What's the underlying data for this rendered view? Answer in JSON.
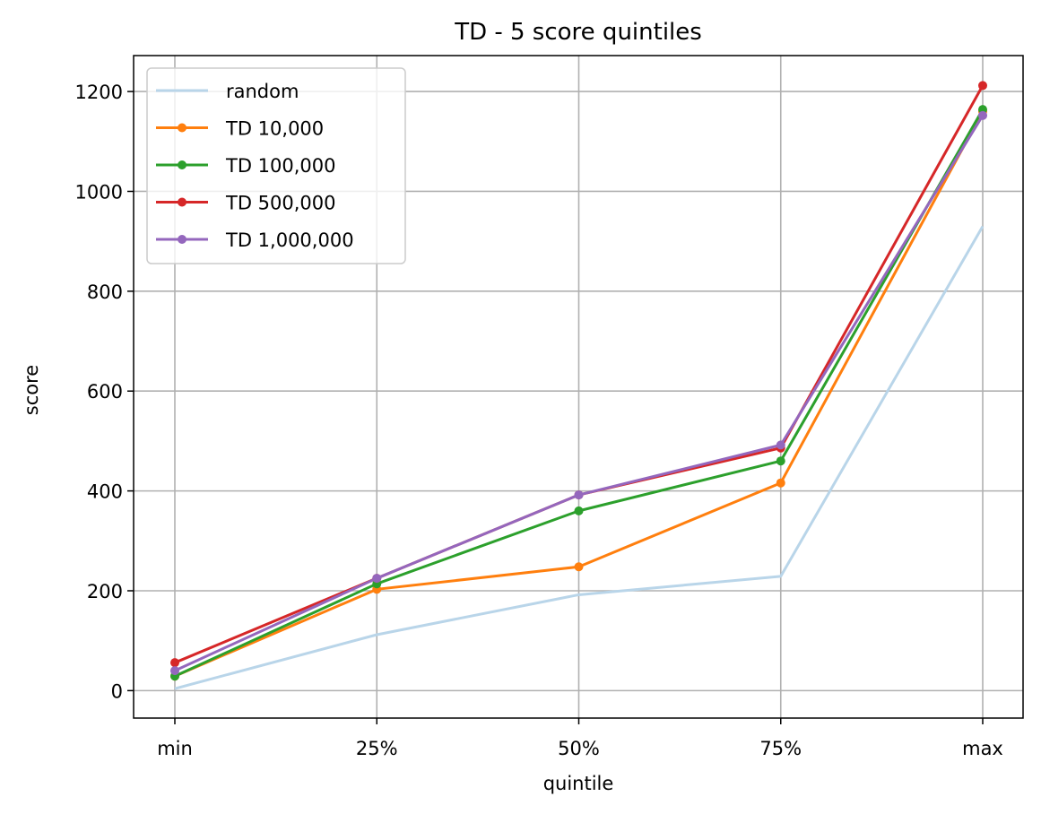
{
  "chart_data": {
    "type": "line",
    "title": "TD - 5 score quintiles",
    "xlabel": "quintile",
    "ylabel": "score",
    "categories": [
      "min",
      "25%",
      "50%",
      "75%",
      "max"
    ],
    "ylim": [
      -55,
      1272
    ],
    "yticks": [
      0,
      200,
      400,
      600,
      800,
      1000,
      1200
    ],
    "grid": true,
    "legend_position": "top-left",
    "series": [
      {
        "name": "random",
        "color": "#b9d5e9",
        "markers": false,
        "values": [
          4,
          112,
          192,
          229,
          930
        ]
      },
      {
        "name": "TD 10,000",
        "color": "#ff7f0e",
        "markers": true,
        "values": [
          29,
          203,
          248,
          416,
          1160
        ]
      },
      {
        "name": "TD 100,000",
        "color": "#2ca02c",
        "markers": true,
        "values": [
          29,
          214,
          360,
          460,
          1164
        ]
      },
      {
        "name": "TD 500,000",
        "color": "#d62728",
        "markers": true,
        "values": [
          56,
          225,
          392,
          486,
          1212
        ]
      },
      {
        "name": "TD 1,000,000",
        "color": "#9467bd",
        "markers": true,
        "values": [
          40,
          225,
          392,
          492,
          1152
        ]
      }
    ]
  }
}
